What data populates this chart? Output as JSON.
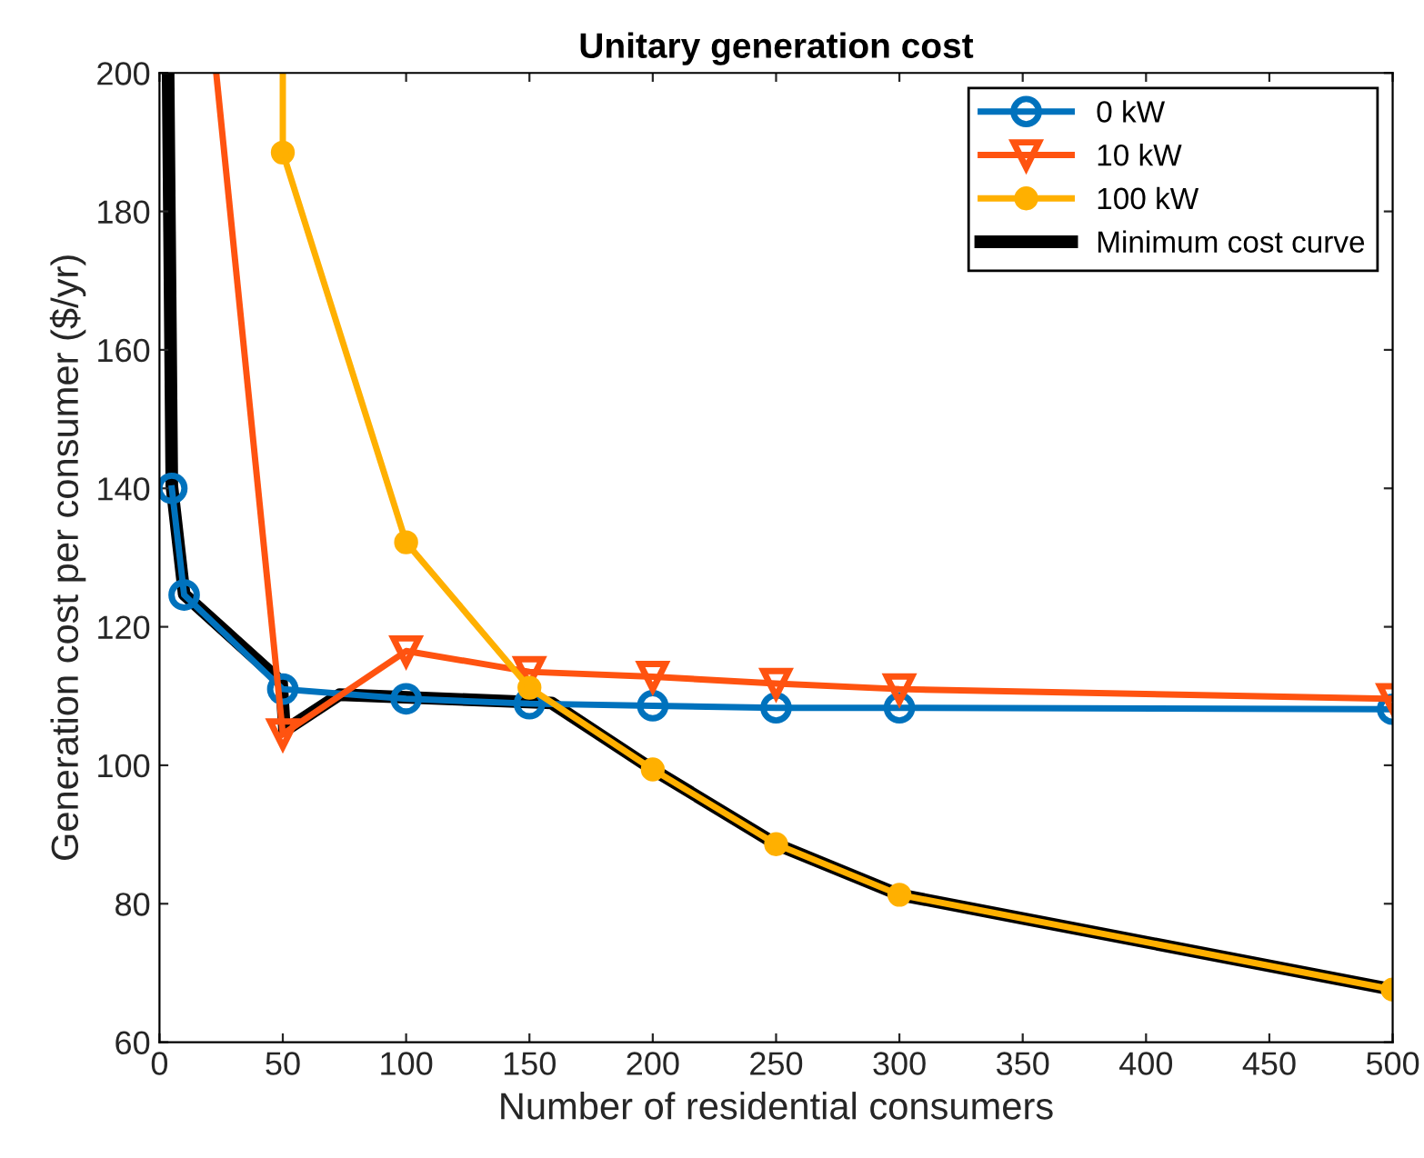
{
  "chart_data": {
    "type": "line",
    "title": "Unitary generation cost",
    "xlabel": "Number of residential consumers",
    "ylabel": "Generation cost per consumer ($/yr)",
    "xlim": [
      0,
      500
    ],
    "xticks": [
      0,
      50,
      100,
      150,
      200,
      250,
      300,
      350,
      400,
      450,
      500
    ],
    "ylim": [
      60,
      200
    ],
    "yticks": [
      60,
      80,
      100,
      120,
      140,
      160,
      180,
      200
    ],
    "grid": false,
    "legend": "top right",
    "series": [
      {
        "name": "0 kW",
        "color": "#0072bd",
        "marker": "circle",
        "x": [
          5,
          10,
          50,
          100,
          150,
          200,
          250,
          300,
          500
        ],
        "values": [
          140,
          124.6,
          111,
          109.6,
          108.9,
          108.6,
          108.3,
          108.3,
          108.1
        ]
      },
      {
        "name": "10 kW",
        "color": "#ff5310",
        "marker": "triangle",
        "x": [
          50,
          100,
          150,
          200,
          250,
          300,
          500
        ],
        "values": [
          104.5,
          116.5,
          113.5,
          112.8,
          111.8,
          111,
          109.6
        ]
      },
      {
        "color": "#ff5310",
        "marker": "none",
        "x": [
          23,
          50
        ],
        "values": [
          200,
          104.5
        ]
      },
      {
        "name": "100 kW",
        "color": "#ffb000",
        "marker": "circle",
        "x": [
          50,
          100,
          150,
          200,
          250,
          300,
          500
        ],
        "values": [
          188.5,
          132.2,
          111.2,
          99.4,
          88.6,
          81.3,
          67.6
        ]
      },
      {
        "color": "#ffb000",
        "marker": "none",
        "x": [
          50,
          50
        ],
        "values": [
          200,
          188.5
        ]
      },
      {
        "name": "Minimum cost curve",
        "color": "#000000",
        "marker": "none",
        "x": [
          3.5,
          5,
          10,
          49.5,
          50.7,
          73,
          159,
          200,
          250,
          300,
          500
        ],
        "values": [
          200,
          140.4,
          124.7,
          112,
          105,
          110.2,
          109,
          99.4,
          88.6,
          81.3,
          67.6
        ]
      }
    ]
  }
}
